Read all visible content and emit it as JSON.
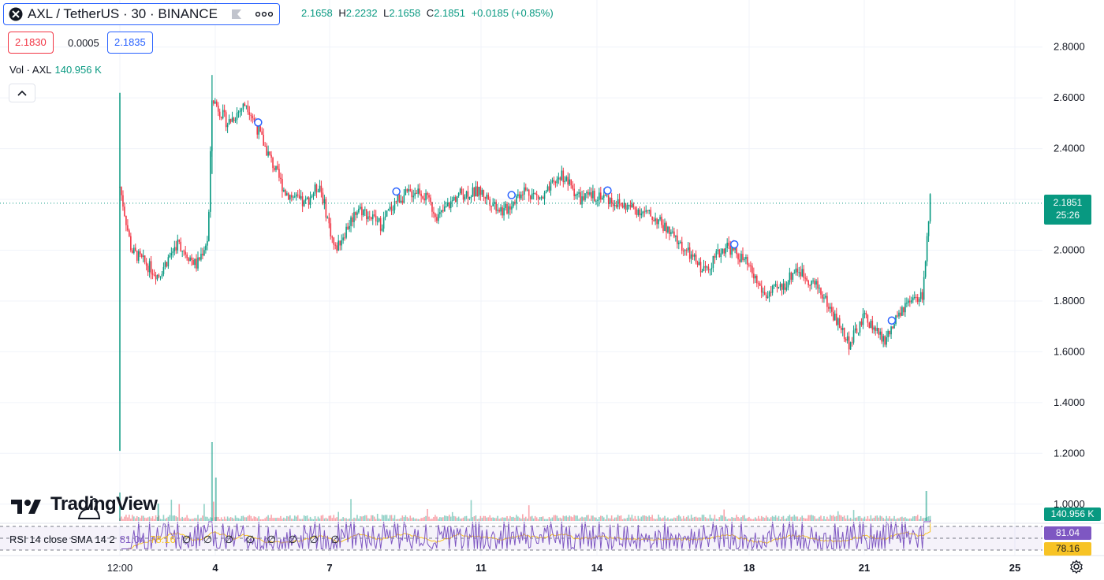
{
  "header": {
    "title": "AXL / TetherUS · 30 · BINANCE",
    "ohlc": {
      "o_label": "",
      "o": "2.1658",
      "h_label": "H",
      "h": "2.2232",
      "l_label": "L",
      "l": "2.1658",
      "c_label": "C",
      "c": "2.1851",
      "change": "+0.0185 (+0.85%)"
    },
    "bid": "2.1830",
    "spread": "0.0005",
    "ask": "2.1835"
  },
  "volume_legend": {
    "label": "Vol · AXL",
    "value": "140.956 K"
  },
  "rsi_legend": {
    "label": "RSI 14 close SMA 14 2",
    "rsi": "81.04",
    "sma": "78.16",
    "zeros": "∅ ∅ ∅ ∅ ∅ ∅ ∅ ∅"
  },
  "price_tags": {
    "last_price": "2.1851",
    "countdown": "25:26",
    "volume": "140.956 K",
    "rsi": "81.04",
    "rsi_sma": "78.16"
  },
  "brand": {
    "name": "TradingView"
  },
  "icons": {
    "symbol": "axl-logo-icon",
    "flag": "flag-icon",
    "more": "more-dots-icon",
    "collapse": "chevron-up-icon",
    "settings": "gear-icon"
  },
  "colors": {
    "up": "#089981",
    "down": "#f23645",
    "rsi": "#7e57c2",
    "sma": "#f7c325",
    "accent": "#2962ff"
  },
  "chart_data": {
    "type": "candlestick",
    "symbol": "AXL / TetherUS",
    "interval": "30",
    "exchange": "BINANCE",
    "x_ticks": [
      "12:00",
      "4",
      "7",
      "11",
      "14",
      "18",
      "21",
      "25"
    ],
    "y_ticks": [
      "2.8000",
      "2.6000",
      "2.4000",
      "2.2000",
      "2.0000",
      "1.8000",
      "1.6000",
      "1.4000",
      "1.2000",
      "1.0000"
    ],
    "ylim": [
      0.95,
      2.95
    ],
    "price_path": [
      {
        "t": 0,
        "p": 2.25
      },
      {
        "t": 0.3,
        "p": 2.0
      },
      {
        "t": 1.0,
        "p": 1.9
      },
      {
        "t": 1.5,
        "p": 2.03
      },
      {
        "t": 2.0,
        "p": 1.94
      },
      {
        "t": 2.3,
        "p": 2.05
      },
      {
        "t": 2.4,
        "p": 2.6
      },
      {
        "t": 2.8,
        "p": 2.5
      },
      {
        "t": 3.3,
        "p": 2.58
      },
      {
        "t": 3.8,
        "p": 2.4
      },
      {
        "t": 4.3,
        "p": 2.23
      },
      {
        "t": 4.8,
        "p": 2.18
      },
      {
        "t": 5.2,
        "p": 2.26
      },
      {
        "t": 5.6,
        "p": 2.0
      },
      {
        "t": 6.2,
        "p": 2.17
      },
      {
        "t": 6.8,
        "p": 2.1
      },
      {
        "t": 7.2,
        "p": 2.2
      },
      {
        "t": 7.8,
        "p": 2.24
      },
      {
        "t": 8.3,
        "p": 2.13
      },
      {
        "t": 8.8,
        "p": 2.22
      },
      {
        "t": 9.4,
        "p": 2.23
      },
      {
        "t": 10.0,
        "p": 2.15
      },
      {
        "t": 10.5,
        "p": 2.24
      },
      {
        "t": 11.0,
        "p": 2.2
      },
      {
        "t": 11.5,
        "p": 2.3
      },
      {
        "t": 12.0,
        "p": 2.2
      },
      {
        "t": 12.5,
        "p": 2.22
      },
      {
        "t": 13.0,
        "p": 2.18
      },
      {
        "t": 13.5,
        "p": 2.16
      },
      {
        "t": 14.0,
        "p": 2.12
      },
      {
        "t": 14.6,
        "p": 2.02
      },
      {
        "t": 15.2,
        "p": 1.92
      },
      {
        "t": 15.8,
        "p": 2.02
      },
      {
        "t": 16.3,
        "p": 1.95
      },
      {
        "t": 16.8,
        "p": 1.82
      },
      {
        "t": 17.3,
        "p": 1.86
      },
      {
        "t": 17.6,
        "p": 1.93
      },
      {
        "t": 18.2,
        "p": 1.85
      },
      {
        "t": 18.6,
        "p": 1.74
      },
      {
        "t": 19.0,
        "p": 1.63
      },
      {
        "t": 19.4,
        "p": 1.74
      },
      {
        "t": 19.9,
        "p": 1.64
      },
      {
        "t": 20.4,
        "p": 1.77
      },
      {
        "t": 20.9,
        "p": 1.82
      },
      {
        "t": 21.1,
        "p": 2.2
      }
    ],
    "markers": [
      3.6,
      7.2,
      10.2,
      12.7,
      16.0,
      20.1
    ],
    "last_price": 2.1851,
    "volume_last": "140.956 K",
    "rsi": 81.04,
    "rsi_sma": 78.16
  }
}
